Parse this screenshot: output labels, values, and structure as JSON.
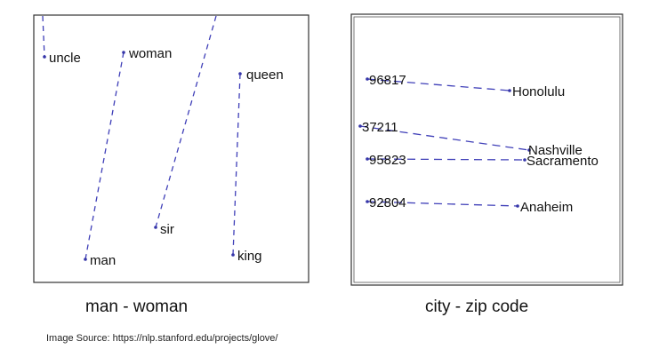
{
  "panels": [
    {
      "caption": "man - woman",
      "points": [
        {
          "label": "uncle"
        },
        {
          "label": "woman"
        },
        {
          "label": "queen"
        },
        {
          "label": "sir"
        },
        {
          "label": "man"
        },
        {
          "label": "king"
        }
      ]
    },
    {
      "caption": "city - zip code",
      "points": [
        {
          "label": "96817"
        },
        {
          "label": "Honolulu"
        },
        {
          "label": "37211"
        },
        {
          "label": "Nashville"
        },
        {
          "label": "95823"
        },
        {
          "label": "Sacramento"
        },
        {
          "label": "92804"
        },
        {
          "label": "Anaheim"
        }
      ]
    }
  ],
  "source_note": "Image Source: https://nlp.stanford.edu/projects/glove/",
  "colors": {
    "line": "#3f3fb8",
    "point": "#3535a8",
    "frame": "#333333",
    "text": "#111111"
  }
}
